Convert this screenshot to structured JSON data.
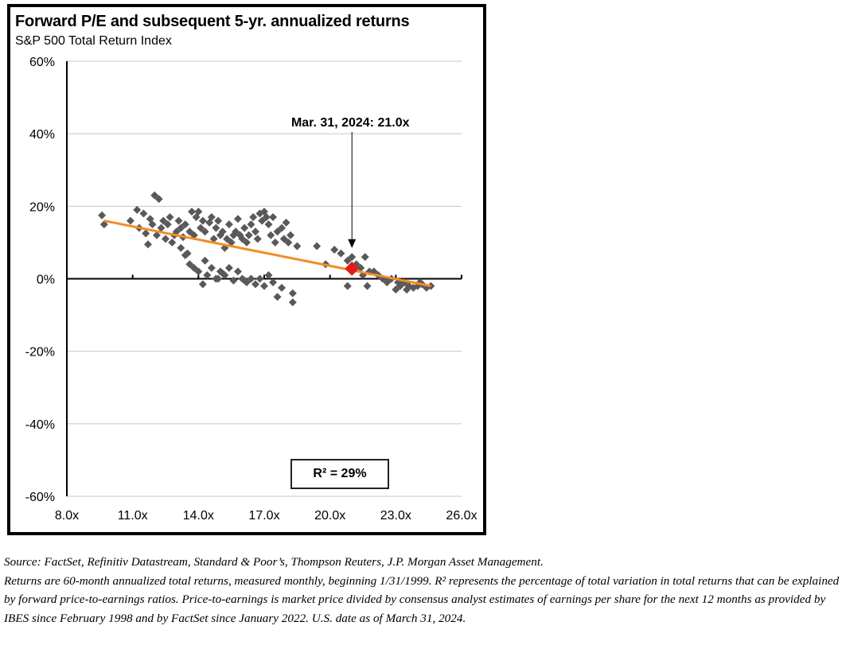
{
  "chart_data": {
    "type": "scatter",
    "title": "Forward P/E and subsequent 5-yr. annualized returns",
    "subtitle": "S&P 500 Total Return Index",
    "xlabel": "",
    "ylabel": "",
    "xlim": [
      8.0,
      26.0
    ],
    "ylim": [
      -60,
      60
    ],
    "x_ticks": [
      8,
      11,
      14,
      17,
      20,
      23,
      26
    ],
    "x_tick_labels": [
      "8.0x",
      "11.0x",
      "14.0x",
      "17.0x",
      "20.0x",
      "23.0x",
      "26.0x"
    ],
    "y_ticks": [
      60,
      40,
      20,
      0,
      -20,
      -40,
      -60
    ],
    "y_tick_labels": [
      "60%",
      "40%",
      "20%",
      "0%",
      "-20%",
      "-40%",
      "-60%"
    ],
    "grid": "horizontal",
    "colors": {
      "points": "#595959",
      "trend": "#f28c28",
      "current": "#e21b1b"
    },
    "points": [
      [
        9.6,
        17.5
      ],
      [
        9.7,
        15
      ],
      [
        10.9,
        16
      ],
      [
        11.2,
        19
      ],
      [
        11.5,
        18
      ],
      [
        11.3,
        14
      ],
      [
        11.6,
        12.5
      ],
      [
        11.7,
        9.5
      ],
      [
        11.8,
        16.5
      ],
      [
        11.9,
        15
      ],
      [
        12.0,
        23
      ],
      [
        12.1,
        12
      ],
      [
        12.2,
        22
      ],
      [
        12.3,
        14
      ],
      [
        12.4,
        16
      ],
      [
        12.5,
        11
      ],
      [
        12.6,
        15
      ],
      [
        12.7,
        17
      ],
      [
        12.8,
        10
      ],
      [
        12.9,
        12
      ],
      [
        13.0,
        13
      ],
      [
        13.1,
        16
      ],
      [
        13.2,
        14
      ],
      [
        13.3,
        11.5
      ],
      [
        13.4,
        15
      ],
      [
        13.5,
        7
      ],
      [
        13.6,
        13
      ],
      [
        13.7,
        18.5
      ],
      [
        13.8,
        12
      ],
      [
        13.9,
        17
      ],
      [
        14.0,
        18.5
      ],
      [
        14.1,
        14
      ],
      [
        14.2,
        16
      ],
      [
        14.3,
        13
      ],
      [
        14.5,
        15.5
      ],
      [
        14.6,
        17
      ],
      [
        14.7,
        11
      ],
      [
        14.8,
        14
      ],
      [
        14.9,
        16
      ],
      [
        15.0,
        12
      ],
      [
        15.1,
        13
      ],
      [
        15.2,
        8.5
      ],
      [
        15.3,
        11
      ],
      [
        15.4,
        15
      ],
      [
        15.5,
        10
      ],
      [
        15.6,
        12
      ],
      [
        15.7,
        13
      ],
      [
        15.8,
        16.5
      ],
      [
        15.9,
        12
      ],
      [
        16.0,
        11
      ],
      [
        16.1,
        14
      ],
      [
        16.2,
        10
      ],
      [
        16.3,
        12
      ],
      [
        16.4,
        15
      ],
      [
        16.5,
        17
      ],
      [
        16.6,
        13
      ],
      [
        16.7,
        11
      ],
      [
        16.8,
        18
      ],
      [
        16.9,
        16
      ],
      [
        17.0,
        18.5
      ],
      [
        17.1,
        17
      ],
      [
        17.2,
        15
      ],
      [
        17.3,
        12
      ],
      [
        17.4,
        17
      ],
      [
        17.5,
        10
      ],
      [
        17.6,
        13
      ],
      [
        17.8,
        14
      ],
      [
        17.9,
        11
      ],
      [
        18.0,
        15.5
      ],
      [
        18.1,
        10
      ],
      [
        18.2,
        12
      ],
      [
        18.5,
        9
      ],
      [
        13.2,
        8.5
      ],
      [
        13.4,
        6.5
      ],
      [
        13.6,
        4
      ],
      [
        13.8,
        3
      ],
      [
        14.0,
        2
      ],
      [
        14.2,
        -1.5
      ],
      [
        14.3,
        5
      ],
      [
        14.4,
        1
      ],
      [
        14.6,
        3
      ],
      [
        14.8,
        0
      ],
      [
        15.0,
        2
      ],
      [
        15.2,
        1
      ],
      [
        15.4,
        3
      ],
      [
        15.6,
        -0.5
      ],
      [
        15.8,
        2
      ],
      [
        16.0,
        0
      ],
      [
        16.2,
        -1
      ],
      [
        16.4,
        0
      ],
      [
        16.6,
        -1.5
      ],
      [
        16.8,
        0
      ],
      [
        17.0,
        -2
      ],
      [
        17.2,
        1
      ],
      [
        17.4,
        -1
      ],
      [
        17.6,
        -5
      ],
      [
        17.8,
        -2.5
      ],
      [
        18.3,
        -4
      ],
      [
        18.3,
        -6.5
      ],
      [
        14.9,
        0
      ],
      [
        15.1,
        1.5
      ],
      [
        16.1,
        -0.5
      ],
      [
        19.4,
        9
      ],
      [
        19.8,
        4
      ],
      [
        20.2,
        8
      ],
      [
        20.5,
        7
      ],
      [
        20.8,
        5
      ],
      [
        21.0,
        6
      ],
      [
        21.2,
        4
      ],
      [
        21.4,
        3
      ],
      [
        21.6,
        6
      ],
      [
        21.8,
        2
      ],
      [
        20.8,
        -2
      ],
      [
        21.5,
        1
      ],
      [
        21.7,
        -2
      ],
      [
        22.0,
        2
      ],
      [
        22.2,
        1
      ],
      [
        22.4,
        0
      ],
      [
        22.6,
        -1
      ],
      [
        22.8,
        0
      ],
      [
        23.0,
        -3
      ],
      [
        23.2,
        -2
      ],
      [
        23.4,
        -1
      ],
      [
        23.6,
        -2
      ],
      [
        23.8,
        -2.5
      ],
      [
        24.0,
        -2
      ],
      [
        24.2,
        -1.5
      ],
      [
        24.4,
        -2.5
      ],
      [
        24.6,
        -2
      ],
      [
        23.1,
        -1
      ],
      [
        23.5,
        -3
      ],
      [
        24.1,
        -1
      ]
    ],
    "trendline": {
      "x": [
        9.7,
        24.6
      ],
      "y": [
        16,
        -2
      ]
    },
    "current": {
      "x": 21.0,
      "y": 2.8
    },
    "annotation": {
      "text": "Mar. 31, 2024:  21.0x",
      "x": 21.0,
      "y": 8.5
    },
    "r_squared_label": "R² = 29%"
  },
  "footnote": {
    "source": "Source: FactSet, Refinitiv Datastream, Standard & Poor’s, Thompson Reuters, J.P. Morgan Asset Management.",
    "note": "Returns are 60-month annualized total returns, measured monthly, beginning 1/31/1999. R² represents the percentage of total variation in total returns that can be explained by forward price-to-earnings ratios. Price-to-earnings is market price divided by consensus analyst estimates of earnings per share for the next 12 months as provided by IBES since February 1998 and by FactSet since January 2022. U.S. date as of March 31, 2024."
  }
}
